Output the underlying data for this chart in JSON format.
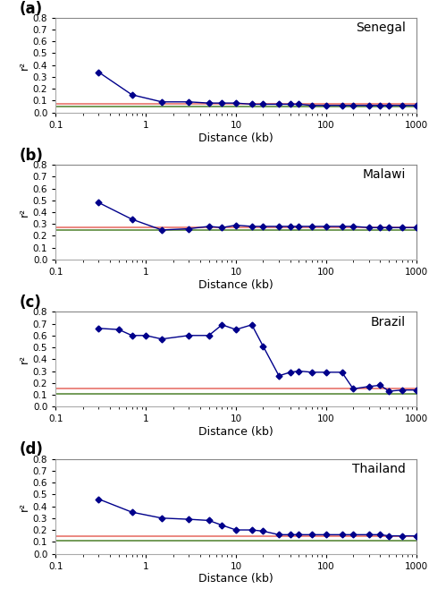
{
  "panels": [
    {
      "label": "(a)",
      "country": "Senegal",
      "blue_line_x": [
        0.3,
        0.7,
        1.5,
        3,
        5,
        7,
        10,
        15,
        20,
        30,
        40,
        50,
        70,
        100,
        150,
        200,
        300,
        400,
        500,
        700,
        1000
      ],
      "blue_line_y": [
        0.34,
        0.15,
        0.09,
        0.09,
        0.08,
        0.08,
        0.08,
        0.07,
        0.07,
        0.07,
        0.07,
        0.07,
        0.06,
        0.06,
        0.06,
        0.06,
        0.06,
        0.06,
        0.06,
        0.06,
        0.06
      ],
      "red_line_y": 0.07,
      "green_line_y": 0.05,
      "ylim": [
        0.0,
        0.8
      ]
    },
    {
      "label": "(b)",
      "country": "Malawi",
      "blue_line_x": [
        0.3,
        0.7,
        1.5,
        3,
        5,
        7,
        10,
        15,
        20,
        30,
        40,
        50,
        70,
        100,
        150,
        200,
        300,
        400,
        500,
        700,
        1000
      ],
      "blue_line_y": [
        0.48,
        0.34,
        0.25,
        0.26,
        0.28,
        0.27,
        0.29,
        0.28,
        0.28,
        0.28,
        0.28,
        0.28,
        0.28,
        0.28,
        0.28,
        0.28,
        0.27,
        0.27,
        0.27,
        0.27,
        0.27
      ],
      "red_line_y": 0.27,
      "green_line_y": 0.25,
      "ylim": [
        0.0,
        0.8
      ]
    },
    {
      "label": "(c)",
      "country": "Brazil",
      "blue_line_x": [
        0.3,
        0.5,
        0.7,
        1.0,
        1.5,
        3,
        5,
        7,
        10,
        15,
        20,
        30,
        40,
        50,
        70,
        100,
        150,
        200,
        300,
        400,
        500,
        700,
        1000
      ],
      "blue_line_y": [
        0.66,
        0.65,
        0.6,
        0.6,
        0.57,
        0.6,
        0.6,
        0.69,
        0.65,
        0.69,
        0.51,
        0.26,
        0.29,
        0.3,
        0.29,
        0.29,
        0.29,
        0.15,
        0.17,
        0.18,
        0.13,
        0.14,
        0.14
      ],
      "red_line_y": 0.15,
      "green_line_y": 0.11,
      "ylim": [
        0.0,
        0.8
      ]
    },
    {
      "label": "(d)",
      "country": "Thailand",
      "blue_line_x": [
        0.3,
        0.7,
        1.5,
        3,
        5,
        7,
        10,
        15,
        20,
        30,
        40,
        50,
        70,
        100,
        150,
        200,
        300,
        400,
        500,
        700,
        1000
      ],
      "blue_line_y": [
        0.46,
        0.35,
        0.3,
        0.29,
        0.28,
        0.24,
        0.2,
        0.2,
        0.19,
        0.16,
        0.16,
        0.16,
        0.16,
        0.16,
        0.16,
        0.16,
        0.16,
        0.16,
        0.15,
        0.15,
        0.15
      ],
      "red_line_y": 0.15,
      "green_line_y": 0.11,
      "ylim": [
        0.0,
        0.8
      ]
    }
  ],
  "blue_color": "#00008B",
  "red_color": "#E8736B",
  "green_color": "#5B8A3C",
  "marker": "D",
  "markersize": 3.5,
  "linewidth": 1.0,
  "xlabel": "Distance (kb)",
  "ylabel": "r²",
  "xlim": [
    0.1,
    1000
  ],
  "yticks": [
    0.0,
    0.1,
    0.2,
    0.3,
    0.4,
    0.5,
    0.6,
    0.7,
    0.8
  ],
  "background_color": "#ffffff",
  "panel_label_fontsize": 12,
  "axis_label_fontsize": 9,
  "tick_fontsize": 7.5,
  "country_fontsize": 10,
  "spine_color": "#aaaaaa",
  "top_spine_color": "#888888"
}
